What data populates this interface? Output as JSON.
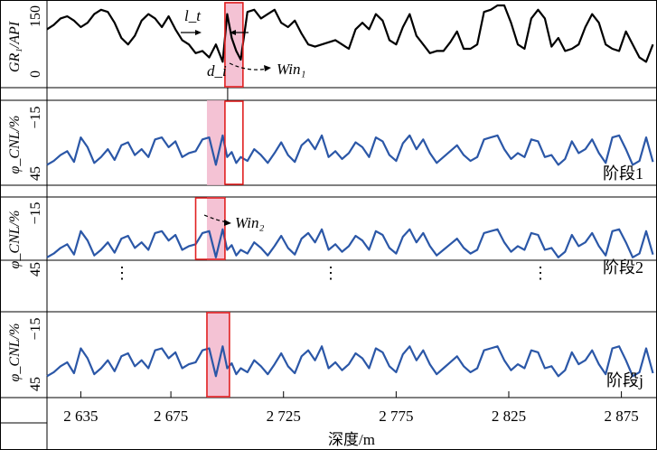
{
  "chart_data": {
    "type": "line",
    "xlabel": "深度/m",
    "x_ticks": [
      "2 635",
      "2 675",
      "2 725",
      "2 775",
      "2 825",
      "2 875"
    ],
    "x_tick_values": [
      2635,
      2675,
      2725,
      2775,
      2825,
      2875
    ],
    "xlim": [
      2620,
      2890
    ],
    "panels": [
      {
        "id": "gr",
        "ylabel": "GR₁/API",
        "yticks": [
          "150",
          "0"
        ],
        "ylim": [
          0,
          150
        ],
        "color": "#000000",
        "highlight_window": [
          2699,
          2707
        ],
        "box_window": [
          2699,
          2707
        ],
        "annotations": [
          "l_t",
          "d_i",
          "Win₁"
        ],
        "x": [
          2620,
          2623,
          2626,
          2629,
          2632,
          2635,
          2638,
          2641,
          2644,
          2647,
          2650,
          2653,
          2656,
          2659,
          2662,
          2665,
          2668,
          2671,
          2674,
          2677,
          2680,
          2683,
          2686,
          2689,
          2692,
          2695,
          2698,
          2700,
          2702,
          2704,
          2706,
          2709,
          2712,
          2715,
          2718,
          2721,
          2724,
          2727,
          2730,
          2733,
          2736,
          2739,
          2742,
          2745,
          2748,
          2751,
          2754,
          2757,
          2760,
          2763,
          2766,
          2769,
          2772,
          2775,
          2778,
          2781,
          2784,
          2787,
          2790,
          2793,
          2796,
          2799,
          2802,
          2805,
          2808,
          2811,
          2814,
          2817,
          2820,
          2823,
          2826,
          2829,
          2832,
          2835,
          2838,
          2841,
          2844,
          2847,
          2850,
          2853,
          2856,
          2859,
          2862,
          2865,
          2868,
          2871,
          2874,
          2877,
          2880,
          2883,
          2886,
          2889
        ],
        "y": [
          95,
          105,
          120,
          125,
          115,
          100,
          110,
          130,
          140,
          135,
          110,
          75,
          60,
          80,
          115,
          130,
          120,
          100,
          125,
          95,
          70,
          60,
          40,
          45,
          30,
          60,
          20,
          130,
          75,
          45,
          25,
          135,
          140,
          120,
          130,
          140,
          110,
          100,
          115,
          85,
          60,
          55,
          60,
          65,
          70,
          60,
          50,
          95,
          110,
          95,
          130,
          115,
          70,
          60,
          100,
          130,
          80,
          60,
          40,
          45,
          45,
          65,
          90,
          50,
          50,
          60,
          135,
          140,
          150,
          150,
          110,
          60,
          50,
          120,
          140,
          120,
          55,
          75,
          45,
          50,
          60,
          100,
          130,
          110,
          60,
          50,
          45,
          90,
          60,
          30,
          20,
          60
        ]
      },
      {
        "id": "cnl1",
        "ylabel": "φ_CNL/%",
        "yticks": [
          "−15",
          "45"
        ],
        "ylim": [
          45,
          -15
        ],
        "color": "#2b57a7",
        "stage_label": "阶段1",
        "highlight_window": [
          2691,
          2699
        ],
        "box_window": [
          2699,
          2707
        ],
        "x": [
          2620,
          2623,
          2626,
          2629,
          2632,
          2635,
          2638,
          2641,
          2644,
          2647,
          2650,
          2653,
          2656,
          2659,
          2662,
          2665,
          2668,
          2671,
          2674,
          2677,
          2680,
          2683,
          2686,
          2689,
          2692,
          2695,
          2698,
          2700,
          2702,
          2704,
          2706,
          2709,
          2712,
          2715,
          2718,
          2721,
          2724,
          2727,
          2730,
          2733,
          2736,
          2739,
          2742,
          2745,
          2748,
          2751,
          2754,
          2757,
          2760,
          2763,
          2766,
          2769,
          2772,
          2775,
          2778,
          2781,
          2784,
          2787,
          2790,
          2793,
          2796,
          2799,
          2802,
          2805,
          2808,
          2811,
          2814,
          2817,
          2820,
          2823,
          2826,
          2829,
          2832,
          2835,
          2838,
          2841,
          2844,
          2847,
          2850,
          2853,
          2856,
          2859,
          2862,
          2865,
          2868,
          2871,
          2874,
          2877,
          2880,
          2883,
          2886,
          2889
        ],
        "y": [
          38,
          34,
          28,
          24,
          35,
          10,
          20,
          36,
          30,
          22,
          33,
          18,
          15,
          28,
          22,
          30,
          12,
          10,
          20,
          14,
          30,
          26,
          24,
          12,
          10,
          38,
          8,
          30,
          25,
          36,
          30,
          34,
          22,
          28,
          36,
          26,
          15,
          28,
          35,
          18,
          12,
          22,
          8,
          30,
          24,
          32,
          26,
          15,
          20,
          30,
          10,
          14,
          28,
          34,
          16,
          8,
          22,
          12,
          26,
          36,
          30,
          24,
          18,
          28,
          34,
          30,
          12,
          10,
          8,
          22,
          32,
          26,
          30,
          12,
          14,
          30,
          28,
          38,
          32,
          14,
          26,
          22,
          12,
          26,
          36,
          10,
          8,
          22,
          38,
          34,
          10,
          35
        ]
      },
      {
        "id": "cnl2",
        "ylabel": "φ_CNL/%",
        "yticks": [
          "−15",
          "45"
        ],
        "ylim": [
          45,
          -15
        ],
        "color": "#2b57a7",
        "stage_label": "阶段2",
        "highlight_window": [
          2691,
          2699
        ],
        "box_window": [
          2686,
          2699
        ],
        "annotations": [
          "Win₂"
        ],
        "x": [
          2620,
          2623,
          2626,
          2629,
          2632,
          2635,
          2638,
          2641,
          2644,
          2647,
          2650,
          2653,
          2656,
          2659,
          2662,
          2665,
          2668,
          2671,
          2674,
          2677,
          2680,
          2683,
          2686,
          2689,
          2692,
          2695,
          2698,
          2700,
          2702,
          2704,
          2706,
          2709,
          2712,
          2715,
          2718,
          2721,
          2724,
          2727,
          2730,
          2733,
          2736,
          2739,
          2742,
          2745,
          2748,
          2751,
          2754,
          2757,
          2760,
          2763,
          2766,
          2769,
          2772,
          2775,
          2778,
          2781,
          2784,
          2787,
          2790,
          2793,
          2796,
          2799,
          2802,
          2805,
          2808,
          2811,
          2814,
          2817,
          2820,
          2823,
          2826,
          2829,
          2832,
          2835,
          2838,
          2841,
          2844,
          2847,
          2850,
          2853,
          2856,
          2859,
          2862,
          2865,
          2868,
          2871,
          2874,
          2877,
          2880,
          2883,
          2886,
          2889
        ],
        "y": [
          38,
          34,
          28,
          24,
          35,
          10,
          20,
          36,
          30,
          22,
          33,
          18,
          15,
          28,
          22,
          30,
          12,
          10,
          20,
          14,
          30,
          26,
          24,
          12,
          10,
          38,
          8,
          30,
          25,
          36,
          30,
          34,
          22,
          28,
          36,
          26,
          15,
          28,
          35,
          18,
          12,
          22,
          8,
          30,
          24,
          32,
          26,
          15,
          20,
          30,
          10,
          14,
          28,
          34,
          16,
          8,
          22,
          12,
          26,
          36,
          30,
          24,
          18,
          28,
          34,
          30,
          12,
          10,
          8,
          22,
          32,
          26,
          30,
          12,
          14,
          30,
          28,
          38,
          32,
          14,
          26,
          22,
          12,
          26,
          36,
          10,
          8,
          22,
          38,
          34,
          10,
          35
        ]
      },
      {
        "id": "cnlj",
        "ylabel": "φ_CNL/%",
        "yticks": [
          "−15",
          "45"
        ],
        "ylim": [
          45,
          -15
        ],
        "color": "#2b57a7",
        "stage_label": "阶段j",
        "highlight_window": [
          2691,
          2701
        ],
        "box_window": [
          2691,
          2701
        ],
        "x": [
          2620,
          2623,
          2626,
          2629,
          2632,
          2635,
          2638,
          2641,
          2644,
          2647,
          2650,
          2653,
          2656,
          2659,
          2662,
          2665,
          2668,
          2671,
          2674,
          2677,
          2680,
          2683,
          2686,
          2689,
          2692,
          2695,
          2698,
          2700,
          2702,
          2704,
          2706,
          2709,
          2712,
          2715,
          2718,
          2721,
          2724,
          2727,
          2730,
          2733,
          2736,
          2739,
          2742,
          2745,
          2748,
          2751,
          2754,
          2757,
          2760,
          2763,
          2766,
          2769,
          2772,
          2775,
          2778,
          2781,
          2784,
          2787,
          2790,
          2793,
          2796,
          2799,
          2802,
          2805,
          2808,
          2811,
          2814,
          2817,
          2820,
          2823,
          2826,
          2829,
          2832,
          2835,
          2838,
          2841,
          2844,
          2847,
          2850,
          2853,
          2856,
          2859,
          2862,
          2865,
          2868,
          2871,
          2874,
          2877,
          2880,
          2883,
          2886,
          2889
        ],
        "y": [
          38,
          34,
          28,
          24,
          35,
          10,
          20,
          36,
          30,
          22,
          33,
          18,
          15,
          28,
          22,
          30,
          12,
          10,
          20,
          14,
          30,
          26,
          24,
          12,
          10,
          38,
          8,
          30,
          25,
          36,
          30,
          34,
          22,
          28,
          36,
          26,
          15,
          28,
          35,
          18,
          12,
          22,
          8,
          30,
          24,
          32,
          26,
          15,
          20,
          30,
          10,
          14,
          28,
          34,
          16,
          8,
          22,
          12,
          26,
          36,
          30,
          24,
          18,
          28,
          34,
          30,
          12,
          10,
          8,
          22,
          32,
          26,
          30,
          12,
          14,
          30,
          28,
          38,
          32,
          14,
          26,
          22,
          12,
          26,
          36,
          10,
          8,
          22,
          38,
          34,
          10,
          35
        ]
      }
    ]
  }
}
